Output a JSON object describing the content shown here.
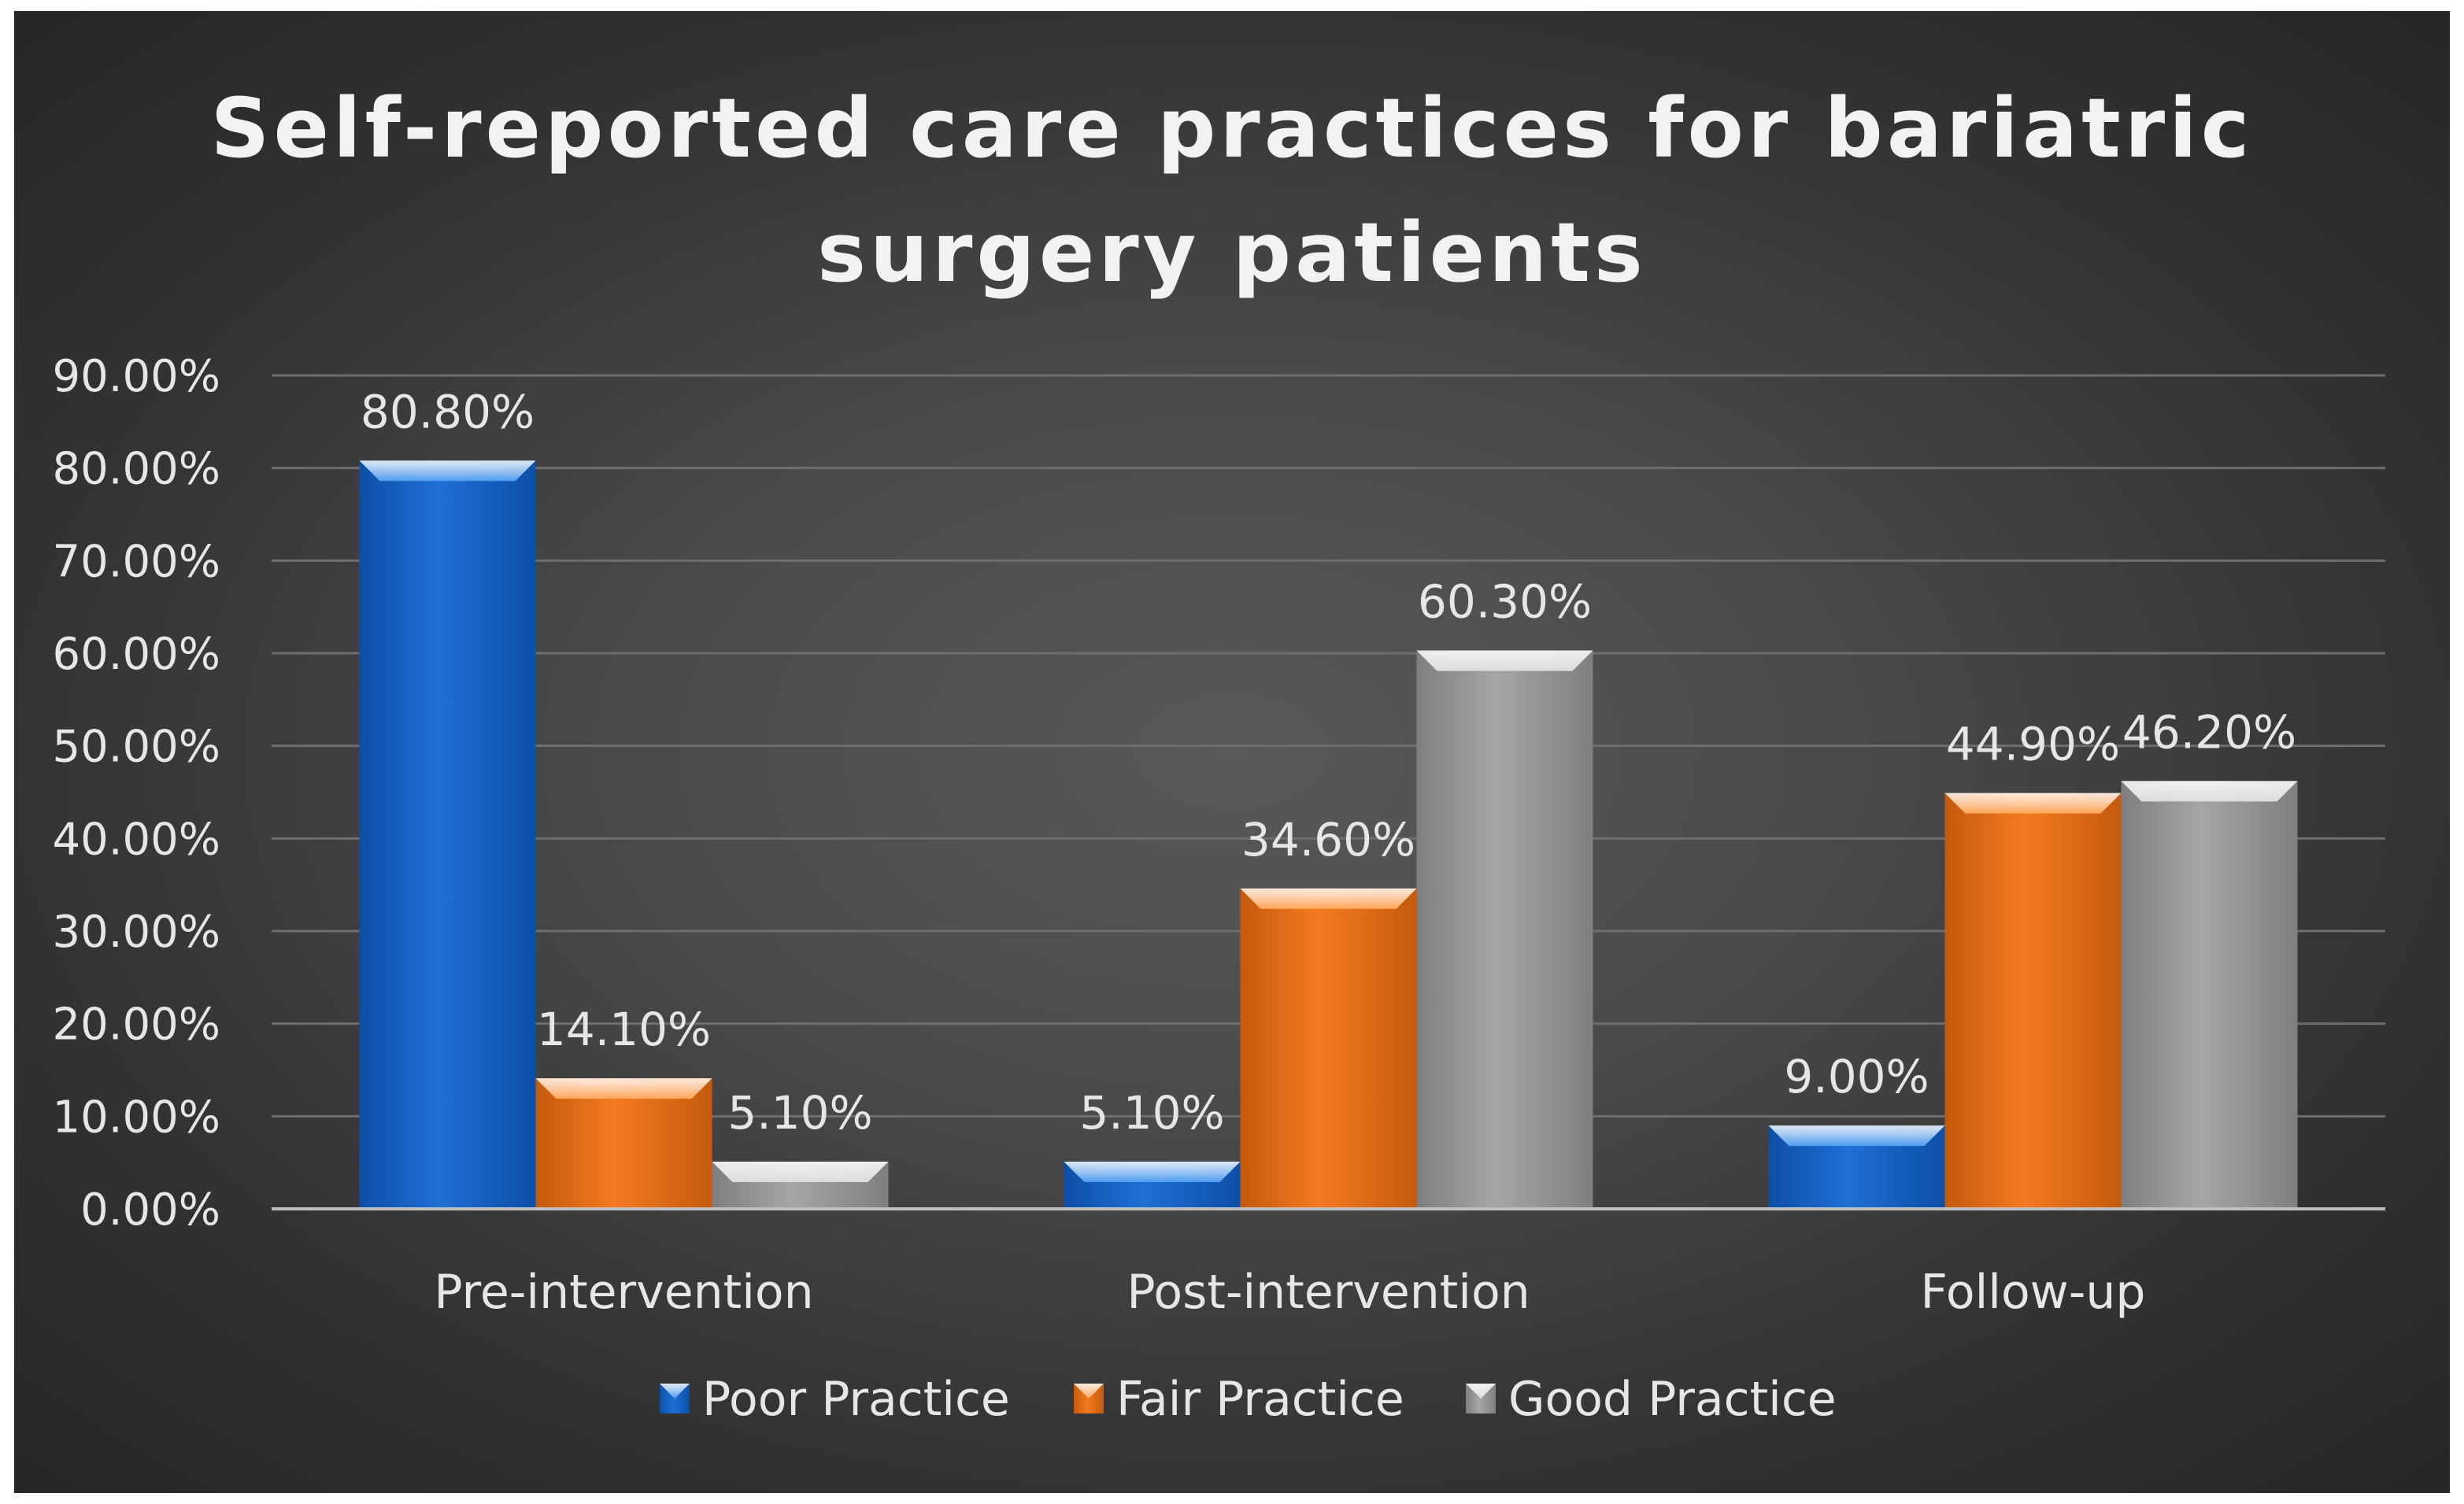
{
  "chart_data": {
    "type": "bar",
    "title_lines": [
      "Self-reported care practices for bariatric",
      "surgery patients"
    ],
    "categories": [
      "Pre-intervention",
      "Post-intervention",
      "Follow-up"
    ],
    "series": [
      {
        "name": "Poor Practice",
        "values": [
          80.8,
          5.1,
          9.0
        ],
        "labels": [
          "80.80%",
          "5.10%",
          "9.00%"
        ],
        "color": "#1f6fd6",
        "color_light": "#4d9bf0",
        "color_dark": "#0d4fa6"
      },
      {
        "name": "Fair Practice",
        "values": [
          14.1,
          34.6,
          44.9
        ],
        "labels": [
          "14.10%",
          "34.60%",
          "44.90%"
        ],
        "color": "#f47a22",
        "color_light": "#ffa458",
        "color_dark": "#c45a0c"
      },
      {
        "name": "Good Practice",
        "values": [
          5.1,
          60.3,
          46.2
        ],
        "labels": [
          "5.10%",
          "60.30%",
          "46.20%"
        ],
        "color": "#a6a6a6",
        "color_light": "#dcdcdc",
        "color_dark": "#7f7f7f"
      }
    ],
    "ylim": [
      0,
      90
    ],
    "yticks": [
      0,
      10,
      20,
      30,
      40,
      50,
      60,
      70,
      80,
      90
    ],
    "ytick_labels": [
      "0.00%",
      "10.00%",
      "20.00%",
      "30.00%",
      "40.00%",
      "50.00%",
      "60.00%",
      "70.00%",
      "80.00%",
      "90.00%"
    ],
    "xlabel": "",
    "ylabel": "",
    "grid": true,
    "legend_position": "bottom"
  }
}
